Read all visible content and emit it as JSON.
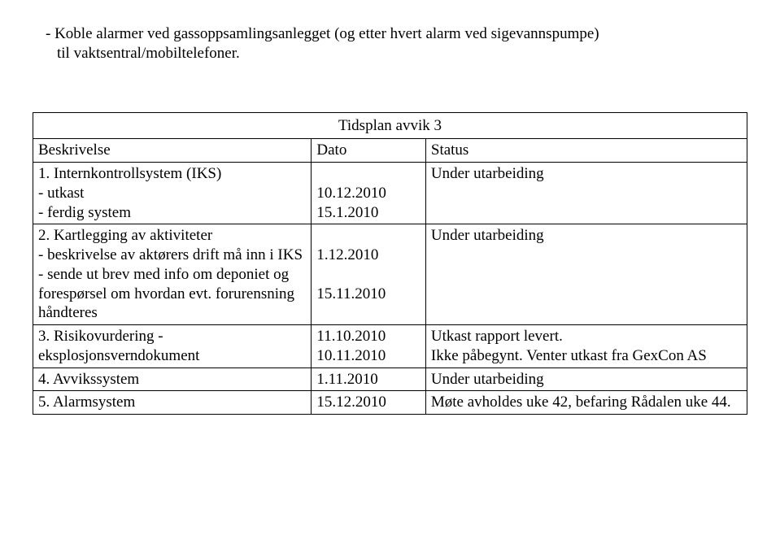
{
  "intro": {
    "line1": "- Koble alarmer ved gassoppsamlingsanlegget (og etter hvert alarm ved sigevannspumpe)",
    "line2": "til vaktsentral/mobiltelefoner."
  },
  "table": {
    "caption": "Tidsplan avvik 3",
    "headers": {
      "c1": "Beskrivelse",
      "c2": "Dato",
      "c3": "Status"
    },
    "rows": [
      {
        "c1": "1. Internkontrollsystem (IKS)\n- utkast\n- ferdig system",
        "c2": "\n10.12.2010\n15.1.2010",
        "c3": "Under utarbeiding"
      },
      {
        "c1": "2. Kartlegging av aktiviteter\n- beskrivelse av aktørers drift må inn i IKS\n- sende ut brev med info om deponiet og forespørsel om hvordan evt. forurensning håndteres",
        "c2": "\n1.12.2010\n\n15.11.2010",
        "c3": "Under utarbeiding"
      },
      {
        "c1": "3. Risikovurdering - eksplosjonsverndokument",
        "c2": "11.10.2010\n10.11.2010",
        "c3": "Utkast rapport levert.\nIkke påbegynt. Venter utkast fra GexCon AS"
      },
      {
        "c1": "4. Avvikssystem",
        "c2": "1.11.2010",
        "c3": "Under utarbeiding"
      },
      {
        "c1": "5. Alarmsystem",
        "c2": "15.12.2010",
        "c3": "Møte avholdes uke 42, befaring Rådalen uke 44."
      }
    ]
  }
}
